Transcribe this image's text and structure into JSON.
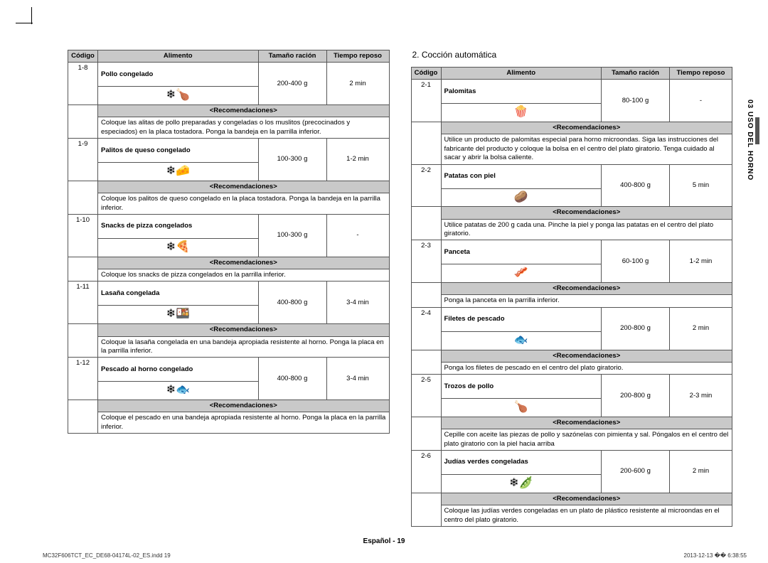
{
  "headers": {
    "code": "Código",
    "food": "Alimento",
    "size": "Tamaño ración",
    "time": "Tiempo reposo",
    "rec": "<Recomendaciones>"
  },
  "sectionTitle": "2. Cocción automática",
  "sideTab": "03  USO DEL HORNO",
  "footer": "Español - 19",
  "indd": "MC32F606TCT_EC_DE68-04174L-02_ES.indd   19",
  "timestamp": "2013-12-13   �� 6:38:55",
  "left": [
    {
      "code": "1-8",
      "name": "Pollo congelado",
      "size": "200-400 g",
      "time": "2 min",
      "icon": "❄🍗",
      "rec": "Coloque las alitas de pollo preparadas y congeladas o los muslitos (precocinados y especiados) en la placa tostadora. Ponga la bandeja en la parrilla inferior."
    },
    {
      "code": "1-9",
      "name": "Palitos de queso congelado",
      "size": "100-300 g",
      "time": "1-2 min",
      "icon": "❄🧀",
      "rec": "Coloque los palitos de queso congelado en la placa tostadora. Ponga la bandeja en la parrilla inferior."
    },
    {
      "code": "1-10",
      "name": "Snacks de pizza congelados",
      "size": "100-300 g",
      "time": "-",
      "icon": "❄🍕",
      "rec": "Coloque los snacks de pizza congelados en la parrilla inferior."
    },
    {
      "code": "1-11",
      "name": "Lasaña congelada",
      "size": "400-800 g",
      "time": "3-4 min",
      "icon": "❄🍱",
      "rec": "Coloque la lasaña congelada en una bandeja apropiada resistente al horno. Ponga la placa en la parrilla inferior."
    },
    {
      "code": "1-12",
      "name": "Pescado al horno congelado",
      "size": "400-800 g",
      "time": "3-4 min",
      "icon": "❄🐟",
      "rec": "Coloque el pescado en una bandeja apropiada resistente al horno. Ponga la placa en la parrilla inferior."
    }
  ],
  "right": [
    {
      "code": "2-1",
      "name": "Palomitas",
      "size": "80-100 g",
      "time": "-",
      "icon": "🍿",
      "rec": "Utilice un producto de palomitas especial para horno microondas. Siga las instrucciones del fabricante del producto y coloque la bolsa en el centro del plato giratorio. Tenga cuidado al sacar y abrir la bolsa caliente."
    },
    {
      "code": "2-2",
      "name": "Patatas con piel",
      "size": "400-800 g",
      "time": "5 min",
      "icon": "🥔",
      "rec": "Utilice patatas de 200 g cada una. Pinche la piel y ponga las patatas en el centro del plato giratorio."
    },
    {
      "code": "2-3",
      "name": "Panceta",
      "size": "60-100 g",
      "time": "1-2 min",
      "icon": "🥓",
      "rec": "Ponga la panceta en la parrilla inferior."
    },
    {
      "code": "2-4",
      "name": "Filetes de pescado",
      "size": "200-800 g",
      "time": "2 min",
      "icon": "🐟",
      "rec": "Ponga los filetes de pescado en el centro del plato giratorio."
    },
    {
      "code": "2-5",
      "name": "Trozos de pollo",
      "size": "200-800 g",
      "time": "2-3 min",
      "icon": "🍗",
      "rec": "Cepille con aceite las piezas de pollo y sazónelas con pimienta y sal. Póngalos en el centro del plato giratorio con la piel hacia arriba"
    },
    {
      "code": "2-6",
      "name": "Judías verdes congeladas",
      "size": "200-600 g",
      "time": "2 min",
      "icon": "❄🫛",
      "rec": "Coloque las judías verdes congeladas en un plato de plástico resistente al microondas en el centro del plato giratorio."
    }
  ]
}
